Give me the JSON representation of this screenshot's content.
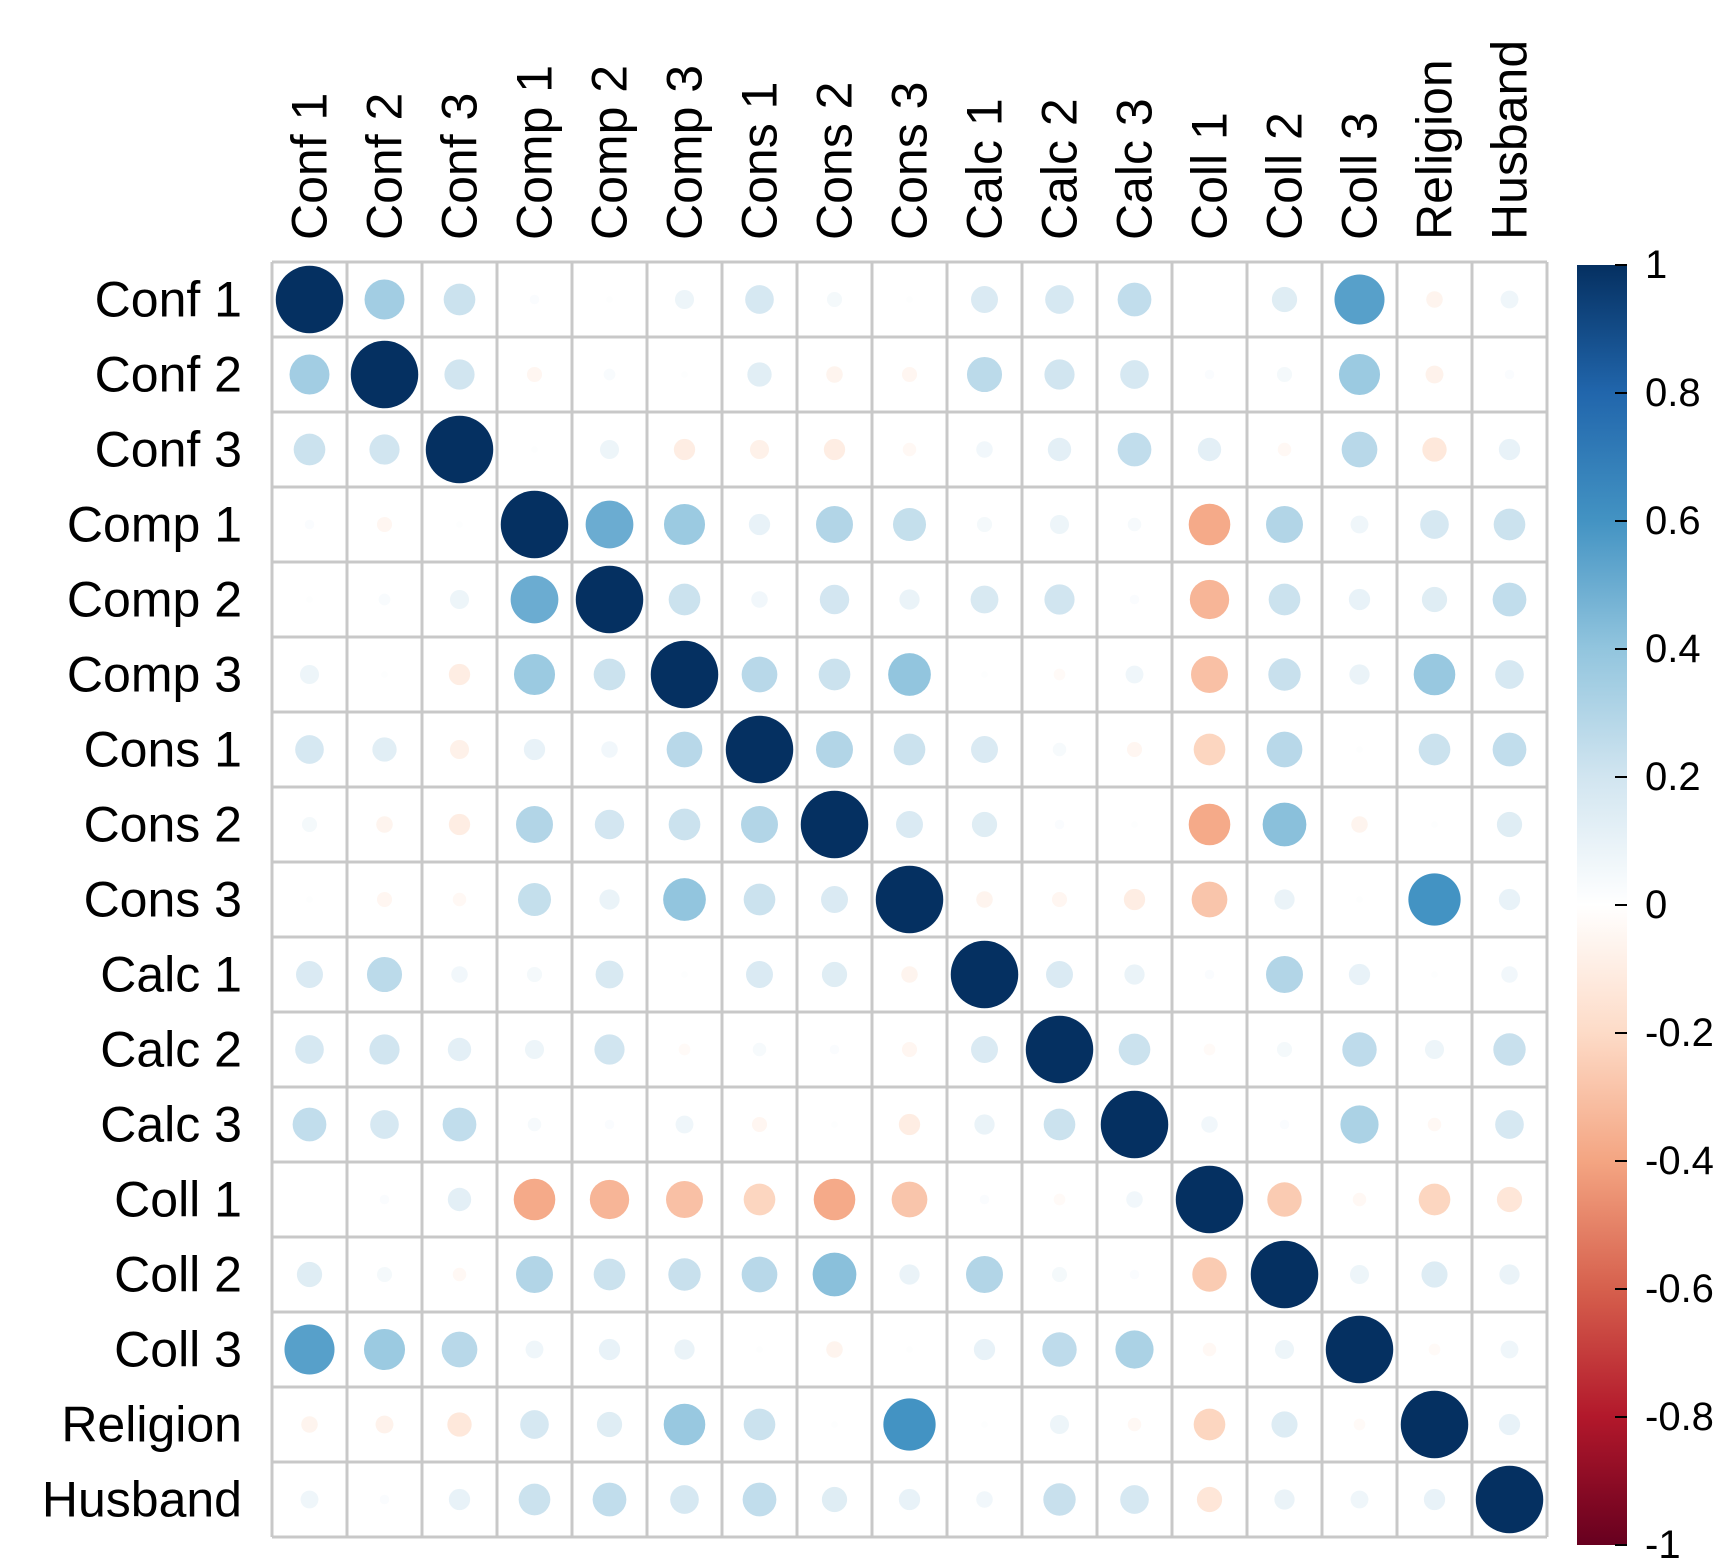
{
  "chart_data": {
    "type": "heatmap",
    "subtype": "correlation-circle-matrix",
    "variables": [
      "Conf 1",
      "Conf 2",
      "Conf 3",
      "Comp 1",
      "Comp 2",
      "Comp 3",
      "Cons 1",
      "Cons 2",
      "Cons 3",
      "Calc 1",
      "Calc 2",
      "Calc 3",
      "Coll 1",
      "Coll 2",
      "Coll 3",
      "Religion",
      "Husband"
    ],
    "matrix": [
      [
        1.0,
        0.35,
        0.22,
        0.02,
        0.01,
        0.08,
        0.18,
        0.05,
        0.01,
        0.16,
        0.18,
        0.25,
        0.0,
        0.14,
        0.55,
        -0.06,
        0.07
      ],
      [
        0.35,
        1.0,
        0.2,
        -0.05,
        0.03,
        0.01,
        0.13,
        -0.06,
        -0.05,
        0.27,
        0.2,
        0.18,
        0.02,
        0.05,
        0.37,
        -0.07,
        0.02
      ],
      [
        0.22,
        0.2,
        1.0,
        0.01,
        0.08,
        -0.1,
        -0.08,
        -0.1,
        -0.04,
        0.06,
        0.12,
        0.25,
        0.12,
        -0.04,
        0.28,
        -0.13,
        0.1
      ],
      [
        0.02,
        -0.05,
        0.01,
        1.0,
        0.5,
        0.37,
        0.1,
        0.3,
        0.24,
        0.05,
        0.08,
        0.04,
        -0.38,
        0.3,
        0.07,
        0.18,
        0.22
      ],
      [
        0.01,
        0.03,
        0.08,
        0.5,
        1.0,
        0.22,
        0.06,
        0.19,
        0.09,
        0.17,
        0.2,
        0.02,
        -0.34,
        0.22,
        0.1,
        0.14,
        0.25
      ],
      [
        0.08,
        0.01,
        -0.1,
        0.37,
        0.22,
        1.0,
        0.28,
        0.22,
        0.4,
        0.01,
        -0.03,
        0.07,
        -0.3,
        0.23,
        0.09,
        0.38,
        0.18
      ],
      [
        0.18,
        0.13,
        -0.08,
        0.1,
        0.06,
        0.28,
        1.0,
        0.3,
        0.22,
        0.16,
        0.04,
        -0.05,
        -0.22,
        0.28,
        0.01,
        0.22,
        0.25
      ],
      [
        0.05,
        -0.06,
        -0.1,
        0.3,
        0.19,
        0.22,
        0.3,
        1.0,
        0.16,
        0.14,
        0.02,
        0.01,
        -0.38,
        0.42,
        -0.06,
        0.01,
        0.14
      ],
      [
        0.01,
        -0.05,
        -0.04,
        0.24,
        0.09,
        0.4,
        0.22,
        0.16,
        1.0,
        -0.06,
        -0.05,
        -0.1,
        -0.28,
        0.09,
        0.01,
        0.6,
        0.1
      ],
      [
        0.16,
        0.27,
        0.06,
        0.05,
        0.17,
        0.01,
        0.16,
        0.14,
        -0.06,
        1.0,
        0.16,
        0.09,
        0.02,
        0.3,
        0.1,
        0.01,
        0.06
      ],
      [
        0.18,
        0.2,
        0.12,
        0.08,
        0.2,
        -0.03,
        0.04,
        0.02,
        -0.05,
        0.16,
        1.0,
        0.22,
        -0.03,
        0.05,
        0.26,
        0.08,
        0.23
      ],
      [
        0.25,
        0.18,
        0.25,
        0.04,
        0.02,
        0.07,
        -0.05,
        0.01,
        -0.1,
        0.09,
        0.22,
        1.0,
        0.06,
        0.02,
        0.32,
        -0.04,
        0.18
      ],
      [
        0.0,
        0.02,
        0.12,
        -0.38,
        -0.34,
        -0.3,
        -0.22,
        -0.38,
        -0.28,
        0.02,
        -0.03,
        0.06,
        1.0,
        -0.26,
        -0.04,
        -0.22,
        -0.14
      ],
      [
        0.14,
        0.05,
        -0.04,
        0.3,
        0.22,
        0.23,
        0.28,
        0.42,
        0.09,
        0.3,
        0.05,
        0.02,
        -0.26,
        1.0,
        0.08,
        0.15,
        0.09
      ],
      [
        0.55,
        0.37,
        0.28,
        0.07,
        0.1,
        0.09,
        0.01,
        -0.06,
        0.01,
        0.1,
        0.26,
        0.32,
        -0.04,
        0.08,
        1.0,
        -0.03,
        0.07
      ],
      [
        -0.06,
        -0.07,
        -0.13,
        0.18,
        0.14,
        0.38,
        0.22,
        0.01,
        0.6,
        0.01,
        0.08,
        -0.04,
        -0.22,
        0.15,
        -0.03,
        1.0,
        0.1
      ],
      [
        0.07,
        0.02,
        0.1,
        0.22,
        0.25,
        0.18,
        0.25,
        0.14,
        0.1,
        0.06,
        0.23,
        0.18,
        -0.14,
        0.09,
        0.07,
        0.1,
        1.0
      ]
    ],
    "colorbar": {
      "ticks": [
        "1",
        "0.8",
        "0.6",
        "0.4",
        "0.2",
        "0",
        "-0.2",
        "-0.4",
        "-0.6",
        "-0.8",
        "-1"
      ],
      "range": [
        -1,
        1
      ],
      "colors": [
        "#67001f",
        "#b2182b",
        "#d6604d",
        "#f4a582",
        "#fddbc7",
        "#ffffff",
        "#d1e5f0",
        "#92c5de",
        "#4393c3",
        "#2166ac",
        "#053061"
      ]
    },
    "grid": true,
    "legend_position": "right"
  }
}
